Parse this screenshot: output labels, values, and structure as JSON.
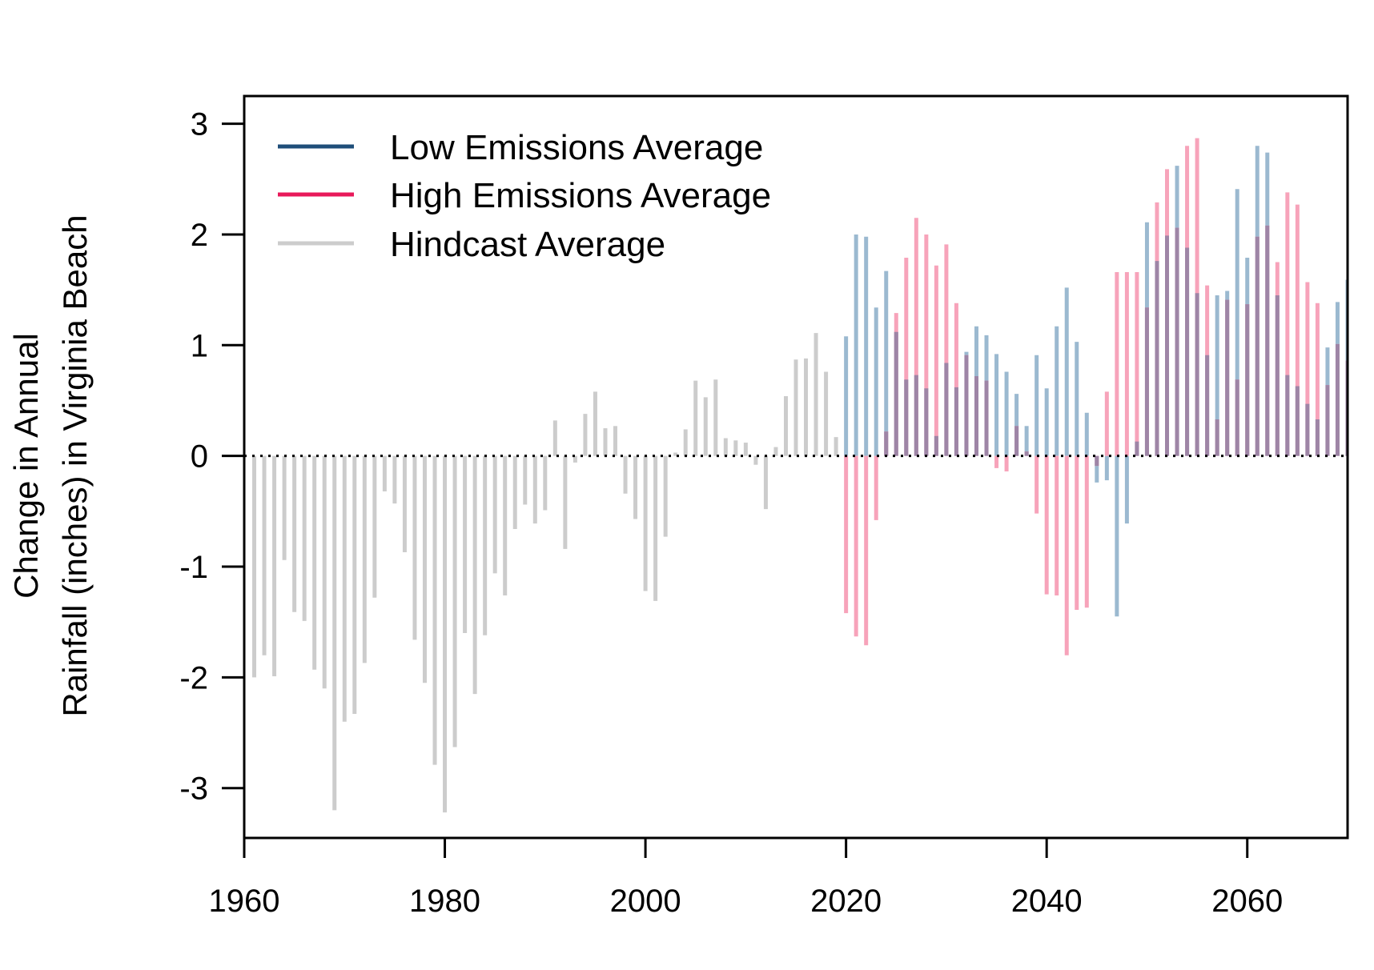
{
  "chart_data": {
    "type": "bar",
    "title": "",
    "xlabel": "",
    "ylabel": [
      "Change in Annual",
      "Rainfall (inches) in Virginia Beach"
    ],
    "xlim": [
      1960,
      2070
    ],
    "ylim": [
      -3.45,
      3.25
    ],
    "x_ticks": [
      1960,
      1980,
      2000,
      2020,
      2040,
      2060
    ],
    "y_ticks": [
      -3,
      -2,
      -1,
      0,
      1,
      2,
      3
    ],
    "y_tick_labels": [
      "-3",
      "-2",
      "-1",
      "0",
      "1",
      "2",
      "3"
    ],
    "zero_line": "dotted",
    "grid": false,
    "legend_position": "top-left",
    "colors": {
      "low_legend": "#1f4e79",
      "high_legend": "#e8195a",
      "hindcast_legend": "#cccccc",
      "low_bar": "#9bb9d0",
      "high_bar": "#f7a3ba",
      "overlap_bar": "#9e85a6",
      "hindcast_bar": "#cccccc"
    },
    "series": [
      {
        "name": "Hindcast Average",
        "x": [
          1961,
          1962,
          1963,
          1964,
          1965,
          1966,
          1967,
          1968,
          1969,
          1970,
          1971,
          1972,
          1973,
          1974,
          1975,
          1976,
          1977,
          1978,
          1979,
          1980,
          1981,
          1982,
          1983,
          1984,
          1985,
          1986,
          1987,
          1988,
          1989,
          1990,
          1991,
          1992,
          1993,
          1994,
          1995,
          1996,
          1997,
          1998,
          1999,
          2000,
          2001,
          2002,
          2003,
          2004,
          2005,
          2006,
          2007,
          2008,
          2009,
          2010,
          2011,
          2012,
          2013,
          2014,
          2015,
          2016,
          2017,
          2018,
          2019
        ],
        "values": [
          -2.0,
          -1.8,
          -1.99,
          -0.94,
          -1.41,
          -1.49,
          -1.93,
          -2.1,
          -3.2,
          -2.4,
          -2.33,
          -1.87,
          -1.28,
          -0.32,
          -0.43,
          -0.87,
          -1.66,
          -2.05,
          -2.79,
          -3.22,
          -2.63,
          -1.6,
          -2.15,
          -1.62,
          -1.06,
          -1.26,
          -0.66,
          -0.44,
          -0.61,
          -0.49,
          0.32,
          -0.84,
          -0.06,
          0.38,
          0.58,
          0.25,
          0.27,
          -0.34,
          -0.57,
          -1.22,
          -1.31,
          -0.73,
          0.03,
          0.24,
          0.68,
          0.53,
          0.69,
          0.16,
          0.14,
          0.12,
          -0.08,
          -0.48,
          0.08,
          0.54,
          0.87,
          0.88,
          1.11,
          0.76,
          0.17
        ]
      },
      {
        "name": "Low Emissions Average",
        "x": [
          2020,
          2021,
          2022,
          2023,
          2024,
          2025,
          2026,
          2027,
          2028,
          2029,
          2030,
          2031,
          2032,
          2033,
          2034,
          2035,
          2036,
          2037,
          2038,
          2039,
          2040,
          2041,
          2042,
          2043,
          2044,
          2045,
          2046,
          2047,
          2048,
          2049,
          2050,
          2051,
          2052,
          2053,
          2054,
          2055,
          2056,
          2057,
          2058,
          2059,
          2060,
          2061,
          2062,
          2063,
          2064,
          2065,
          2066,
          2067,
          2068,
          2069,
          2070
        ],
        "values": [
          1.08,
          2.0,
          1.98,
          1.34,
          1.67,
          1.12,
          0.69,
          0.73,
          0.61,
          0.18,
          0.84,
          0.62,
          0.94,
          1.17,
          1.09,
          0.92,
          0.76,
          0.56,
          0.27,
          0.91,
          0.61,
          1.17,
          1.52,
          1.03,
          0.39,
          -0.24,
          -0.22,
          -1.45,
          -0.61,
          0.13,
          2.11,
          1.76,
          1.99,
          2.62,
          1.88,
          1.47,
          0.91,
          1.45,
          1.49,
          2.41,
          1.79,
          2.8,
          2.74,
          1.45,
          0.73,
          0.63,
          0.47,
          0.33,
          0.98,
          1.39,
          1.59
        ]
      },
      {
        "name": "High Emissions Average",
        "x": [
          2020,
          2021,
          2022,
          2023,
          2024,
          2025,
          2026,
          2027,
          2028,
          2029,
          2030,
          2031,
          2032,
          2033,
          2034,
          2035,
          2036,
          2037,
          2038,
          2039,
          2040,
          2041,
          2042,
          2043,
          2044,
          2045,
          2046,
          2047,
          2048,
          2049,
          2050,
          2051,
          2052,
          2053,
          2054,
          2055,
          2056,
          2057,
          2058,
          2059,
          2060,
          2061,
          2062,
          2063,
          2064,
          2065,
          2066,
          2067,
          2068,
          2069,
          2070
        ],
        "values": [
          -1.42,
          -1.63,
          -1.71,
          -0.58,
          0.22,
          1.29,
          1.79,
          2.15,
          2.0,
          1.72,
          1.91,
          1.38,
          0.91,
          0.72,
          0.68,
          -0.11,
          -0.14,
          0.27,
          0.04,
          -0.52,
          -1.25,
          -1.26,
          -1.8,
          -1.39,
          -1.37,
          -0.09,
          0.58,
          1.66,
          1.66,
          1.66,
          1.34,
          2.29,
          2.59,
          2.06,
          2.8,
          2.87,
          1.54,
          0.33,
          1.41,
          0.69,
          1.37,
          1.98,
          2.08,
          1.75,
          2.38,
          2.27,
          1.57,
          1.38,
          0.64,
          1.01,
          0.86
        ]
      }
    ]
  },
  "legend": [
    {
      "name": "Low Emissions Average",
      "color": "#1f4e79"
    },
    {
      "name": "High Emissions Average",
      "color": "#e8195a"
    },
    {
      "name": "Hindcast Average",
      "color": "#cccccc"
    }
  ]
}
